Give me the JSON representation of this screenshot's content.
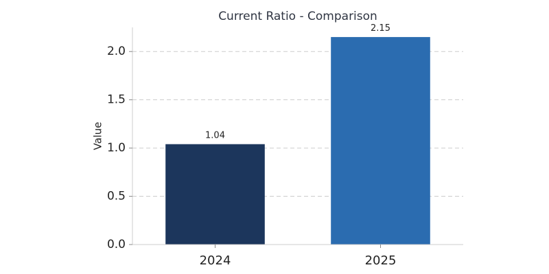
{
  "chart_data": {
    "type": "bar",
    "title": "Current Ratio - Comparison",
    "xlabel": "",
    "ylabel": "Value",
    "categories": [
      "2024",
      "2025"
    ],
    "values": [
      1.04,
      2.15
    ],
    "data_labels": [
      "1.04",
      "2.15"
    ],
    "bar_colors": [
      "#1c365c",
      "#2b6cb0"
    ],
    "ylim": [
      0,
      2.25
    ],
    "yticks": [
      0.0,
      0.5,
      1.0,
      1.5,
      2.0
    ],
    "ytick_labels": [
      "0.0",
      "0.5",
      "1.0",
      "1.5",
      "2.0"
    ],
    "grid": true,
    "grid_axis": "y",
    "legend": "none"
  }
}
